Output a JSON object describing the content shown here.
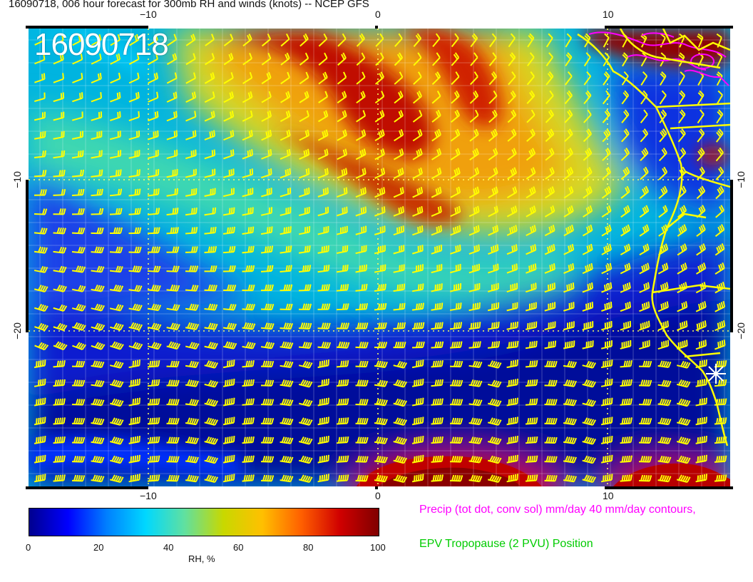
{
  "title": "16090718, 006 hour forecast for 300mb RH and winds (knots) -- NCEP GFS",
  "date_stamp": "16090718",
  "axes": {
    "lon_ticks_top": [
      "−10",
      "0",
      "10"
    ],
    "lon_ticks_bottom": [
      "−10",
      "0",
      "10"
    ],
    "lat_ticks_left": [
      "−10",
      "−20"
    ],
    "lat_ticks_right": [
      "−10",
      "−20"
    ]
  },
  "colorbar": {
    "label": "RH, %",
    "ticks": [
      "0",
      "20",
      "40",
      "60",
      "80",
      "100"
    ],
    "min": 0,
    "max": 100
  },
  "legend_notes": {
    "precip": "Precip (tot dot, conv sol) mm/day 40 mm/day contours,",
    "epv": "EPV Tropopause (2 PVU) Position"
  },
  "colors": {
    "precip_text": "#ff00ff",
    "epv_text": "#00cc00",
    "barb": "#ffff00",
    "coast": "#ffff00",
    "precip_contour": "#ff00ff",
    "rh_scale": [
      "#00008f",
      "#0000ff",
      "#0080ff",
      "#00d8ff",
      "#60e0a0",
      "#c8d800",
      "#ffc000",
      "#ff6000",
      "#d00000",
      "#800000"
    ]
  },
  "marker_icon": "asterisk-marker"
}
